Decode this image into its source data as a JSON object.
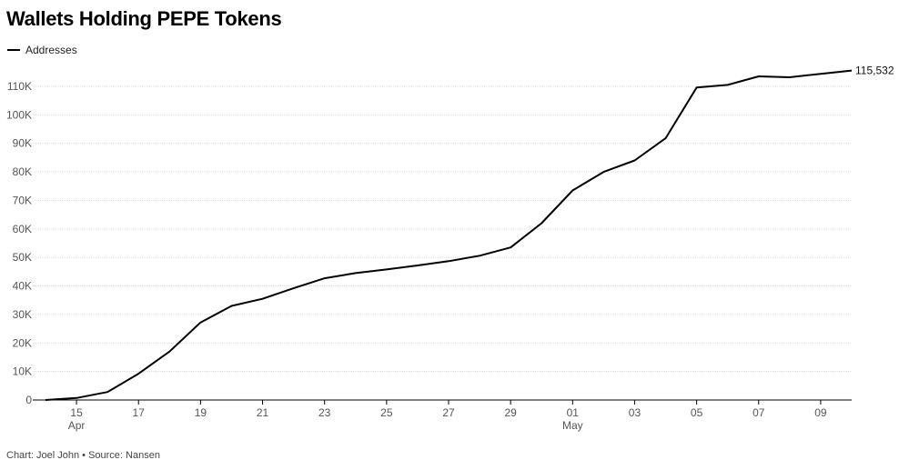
{
  "title": "Wallets Holding PEPE Tokens",
  "legend": {
    "label": "Addresses",
    "color": "#000000"
  },
  "footer": "Chart: Joel John • Source: Nansen",
  "chart_data": {
    "type": "line",
    "title": "Wallets Holding PEPE Tokens",
    "xlabel": "",
    "ylabel": "",
    "grid": true,
    "legend_position": "top-left",
    "ylim": [
      0,
      110000
    ],
    "y_ticks": [
      {
        "value": 0,
        "label": "0"
      },
      {
        "value": 10000,
        "label": "10K"
      },
      {
        "value": 20000,
        "label": "20K"
      },
      {
        "value": 30000,
        "label": "30K"
      },
      {
        "value": 40000,
        "label": "40K"
      },
      {
        "value": 50000,
        "label": "50K"
      },
      {
        "value": 60000,
        "label": "60K"
      },
      {
        "value": 70000,
        "label": "70K"
      },
      {
        "value": 80000,
        "label": "80K"
      },
      {
        "value": 90000,
        "label": "90K"
      },
      {
        "value": 100000,
        "label": "100K"
      },
      {
        "value": 110000,
        "label": "110K"
      }
    ],
    "x_ticks": [
      {
        "date": "Apr 15",
        "label": "15",
        "sublabel": "Apr"
      },
      {
        "date": "Apr 17",
        "label": "17",
        "sublabel": ""
      },
      {
        "date": "Apr 19",
        "label": "19",
        "sublabel": ""
      },
      {
        "date": "Apr 21",
        "label": "21",
        "sublabel": ""
      },
      {
        "date": "Apr 23",
        "label": "23",
        "sublabel": ""
      },
      {
        "date": "Apr 25",
        "label": "25",
        "sublabel": ""
      },
      {
        "date": "Apr 27",
        "label": "27",
        "sublabel": ""
      },
      {
        "date": "Apr 29",
        "label": "29",
        "sublabel": ""
      },
      {
        "date": "May 01",
        "label": "01",
        "sublabel": "May"
      },
      {
        "date": "May 03",
        "label": "03",
        "sublabel": ""
      },
      {
        "date": "May 05",
        "label": "05",
        "sublabel": ""
      },
      {
        "date": "May 07",
        "label": "07",
        "sublabel": ""
      },
      {
        "date": "May 09",
        "label": "09",
        "sublabel": ""
      }
    ],
    "series": [
      {
        "name": "Addresses",
        "color": "#000000",
        "end_label": "115,532",
        "points": [
          {
            "x": "Apr 14",
            "y": 0
          },
          {
            "x": "Apr 15",
            "y": 700
          },
          {
            "x": "Apr 16",
            "y": 2800
          },
          {
            "x": "Apr 17",
            "y": 9200
          },
          {
            "x": "Apr 18",
            "y": 17000
          },
          {
            "x": "Apr 19",
            "y": 27200
          },
          {
            "x": "Apr 20",
            "y": 33000
          },
          {
            "x": "Apr 21",
            "y": 35500
          },
          {
            "x": "Apr 22",
            "y": 39200
          },
          {
            "x": "Apr 23",
            "y": 42700
          },
          {
            "x": "Apr 24",
            "y": 44500
          },
          {
            "x": "Apr 25",
            "y": 45800
          },
          {
            "x": "Apr 26",
            "y": 47200
          },
          {
            "x": "Apr 27",
            "y": 48700
          },
          {
            "x": "Apr 28",
            "y": 50600
          },
          {
            "x": "Apr 29",
            "y": 53500
          },
          {
            "x": "Apr 30",
            "y": 62000
          },
          {
            "x": "May 01",
            "y": 73500
          },
          {
            "x": "May 02",
            "y": 80000
          },
          {
            "x": "May 03",
            "y": 84000
          },
          {
            "x": "May 04",
            "y": 91800
          },
          {
            "x": "May 05",
            "y": 109600
          },
          {
            "x": "May 06",
            "y": 110500
          },
          {
            "x": "May 07",
            "y": 113500
          },
          {
            "x": "May 08",
            "y": 113200
          },
          {
            "x": "May 09",
            "y": 114400
          },
          {
            "x": "May 10",
            "y": 115532
          }
        ]
      }
    ]
  }
}
